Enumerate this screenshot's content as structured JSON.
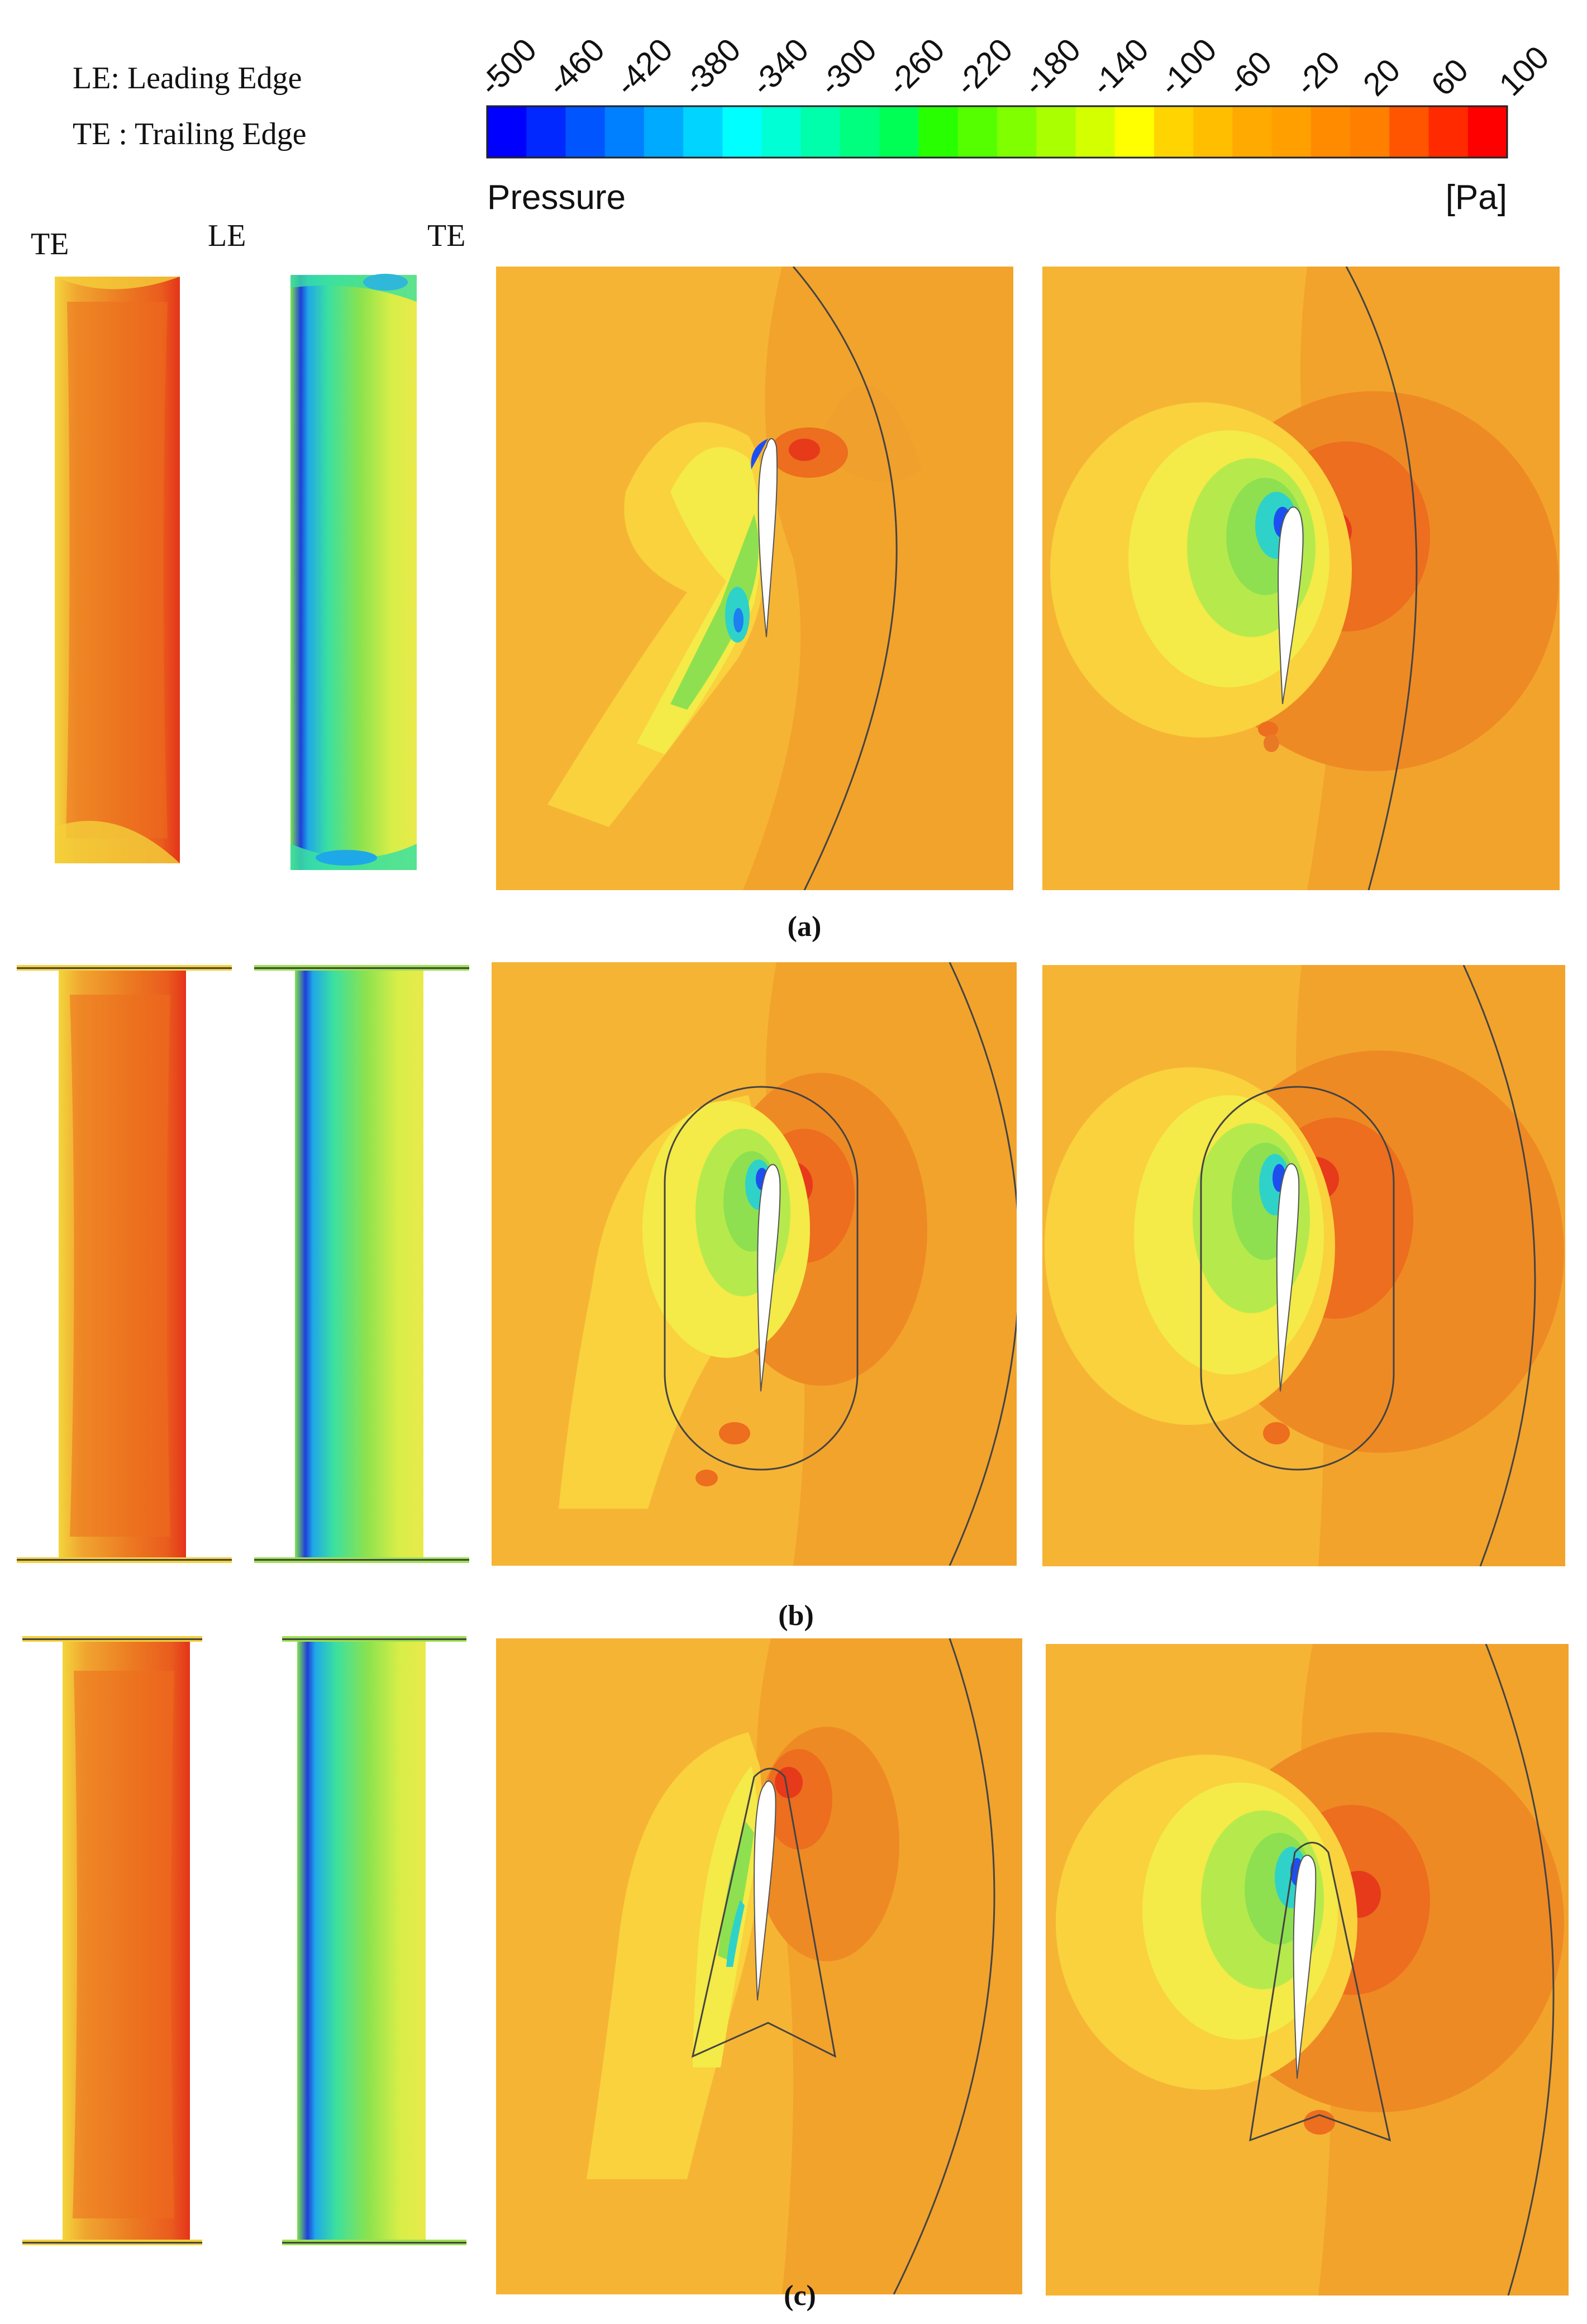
{
  "legend_text": {
    "le": "LE: Leading Edge",
    "te": "TE : Trailing Edge"
  },
  "colorbar": {
    "title": "Pressure",
    "unit": "[Pa]",
    "ticks": [
      "-500",
      "-460",
      "-420",
      "-380",
      "-340",
      "-300",
      "-260",
      "-220",
      "-180",
      "-140",
      "-100",
      "-60",
      "-20",
      "20",
      "60",
      "100"
    ],
    "colors": [
      "#0000ff",
      "#0028ff",
      "#0055ff",
      "#007fff",
      "#00aaff",
      "#00d4ff",
      "#00ffff",
      "#00ffd4",
      "#00ffaa",
      "#00ff7f",
      "#00ff55",
      "#28ff00",
      "#55ff00",
      "#7fff00",
      "#aaff00",
      "#d4ff00",
      "#ffff00",
      "#ffd400",
      "#ffbf00",
      "#ffaa00",
      "#ff9f00",
      "#ff8c00",
      "#ff7f00",
      "#ff5500",
      "#ff2a00",
      "#ff0000"
    ]
  },
  "edge_labels": {
    "te_left": "TE",
    "le": "LE",
    "te_right": "TE"
  },
  "panels": [
    {
      "id": "a",
      "caption": "(a)"
    },
    {
      "id": "b",
      "caption": "(b)"
    },
    {
      "id": "c",
      "caption": "(c)"
    }
  ],
  "colors": {
    "field_base": "#F6B434",
    "field_warm": "#F2A32C",
    "field_hot": "#EC6E1E",
    "field_red": "#E63A1B",
    "field_yellow": "#F9D23E",
    "field_lightyellow": "#F4EA48",
    "field_green": "#8EE050",
    "field_cyan": "#2FD2C8",
    "field_blue": "#1D4FF0",
    "line_dark": "#444444"
  }
}
